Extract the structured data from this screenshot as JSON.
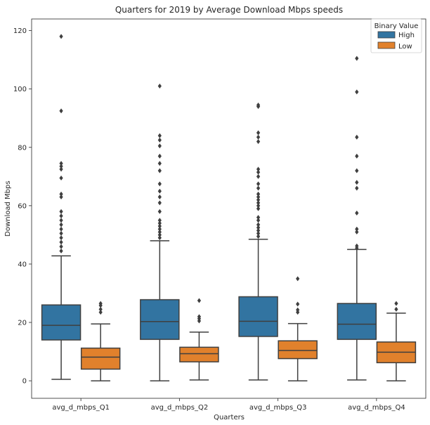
{
  "chart_data": {
    "type": "box",
    "title": "Quarters for 2019 by Average Download Mbps speeds",
    "xlabel": "Quarters",
    "ylabel": "Download Mbps",
    "categories": [
      "avg_d_mbps_Q1",
      "avg_d_mbps_Q2",
      "avg_d_mbps_Q3",
      "avg_d_mbps_Q4"
    ],
    "ylim": [
      -6,
      124
    ],
    "yticks": [
      0,
      20,
      40,
      60,
      80,
      100,
      120
    ],
    "legend": {
      "title": "Binary Value",
      "placement": "top-right",
      "entries": [
        "High",
        "Low"
      ]
    },
    "series": [
      {
        "name": "High",
        "color": "#3274a1",
        "boxes": [
          {
            "whisker_low": 0.5,
            "q1": 14,
            "median": 19,
            "q3": 26,
            "whisker_high": 42.8,
            "outliers": [
              44.5,
              46,
              47.5,
              49,
              50.5,
              52,
              53.5,
              55,
              56.5,
              58,
              63,
              64,
              69.5,
              72.5,
              73.5,
              74.5,
              92.5,
              118
            ]
          },
          {
            "whisker_low": 0,
            "q1": 14.2,
            "median": 20.3,
            "q3": 27.8,
            "whisker_high": 48,
            "outliers": [
              49,
              50,
              51,
              52,
              53,
              54,
              55,
              58,
              61,
              63,
              65,
              67.5,
              72,
              74.5,
              77,
              80.5,
              82.5,
              84,
              101
            ]
          },
          {
            "whisker_low": 0.3,
            "q1": 15.2,
            "median": 20.4,
            "q3": 28.8,
            "whisker_high": 48.5,
            "outliers": [
              49.5,
              50.5,
              51.5,
              52.5,
              53.5,
              55,
              56,
              59,
              60,
              61,
              62,
              63,
              64,
              66,
              67.5,
              70,
              71.5,
              72.5,
              82,
              83.5,
              85,
              94,
              94.5
            ]
          },
          {
            "whisker_low": 0.3,
            "q1": 14.2,
            "median": 19.4,
            "q3": 26.5,
            "whisker_high": 45,
            "outliers": [
              45.5,
              46.2,
              51,
              52,
              57.5,
              66,
              68,
              72,
              77,
              83.5,
              99,
              110.5
            ]
          }
        ]
      },
      {
        "name": "Low",
        "color": "#e1812c",
        "boxes": [
          {
            "whisker_low": 0,
            "q1": 4,
            "median": 8.1,
            "q3": 11.2,
            "whisker_high": 19.5,
            "outliers": [
              23.5,
              24.5,
              25.8,
              26.5
            ]
          },
          {
            "whisker_low": 0.3,
            "q1": 6.5,
            "median": 9.3,
            "q3": 11.5,
            "whisker_high": 16.7,
            "outliers": [
              20.5,
              21.3,
              22,
              27.5
            ]
          },
          {
            "whisker_low": 0,
            "q1": 7.6,
            "median": 10.4,
            "q3": 13.7,
            "whisker_high": 19.6,
            "outliers": [
              23.5,
              24.3,
              26.3,
              35
            ]
          },
          {
            "whisker_low": 0,
            "q1": 6.2,
            "median": 9.8,
            "q3": 13.3,
            "whisker_high": 23.2,
            "outliers": [
              24.5,
              26.5
            ]
          }
        ]
      }
    ]
  }
}
